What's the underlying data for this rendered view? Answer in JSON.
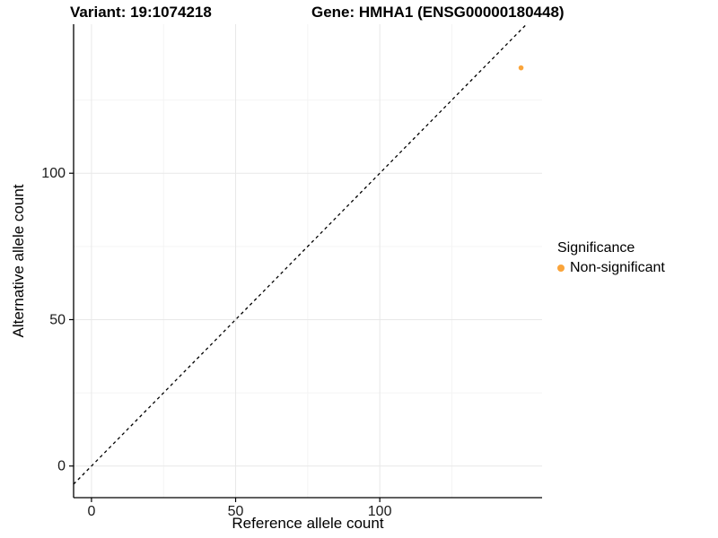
{
  "titles": {
    "variant": "Variant: 19:1074218",
    "gene": "Gene: HMHA1 (ENSG00000180448)"
  },
  "chart_data": {
    "type": "scatter",
    "xlabel": "Reference allele count",
    "ylabel": "Alternative allele count",
    "xlim": [
      -6.2,
      156.3
    ],
    "ylim": [
      -10.8,
      150.9
    ],
    "x_ticks": [
      0,
      50,
      100
    ],
    "y_ticks": [
      0,
      50,
      100
    ],
    "x_minor_ticks": [
      25,
      75,
      125
    ],
    "y_minor_ticks": [
      25,
      75,
      125
    ],
    "grid": true,
    "points": [
      {
        "x": 149,
        "y": 136,
        "series": "Non-significant"
      }
    ],
    "reference_line": {
      "type": "identity",
      "style": "dashed",
      "color": "#000000"
    },
    "legend": {
      "title": "Significance",
      "position": "right",
      "items": [
        {
          "label": "Non-significant",
          "color": "#FAA43A"
        }
      ]
    }
  },
  "colors": {
    "background": "#ffffff",
    "axis_line": "#000000",
    "tick_text": "#1a1a1a",
    "grid_major": "#e8e8e8",
    "grid_minor": "#f4f4f4",
    "point": "#FAA43A"
  }
}
